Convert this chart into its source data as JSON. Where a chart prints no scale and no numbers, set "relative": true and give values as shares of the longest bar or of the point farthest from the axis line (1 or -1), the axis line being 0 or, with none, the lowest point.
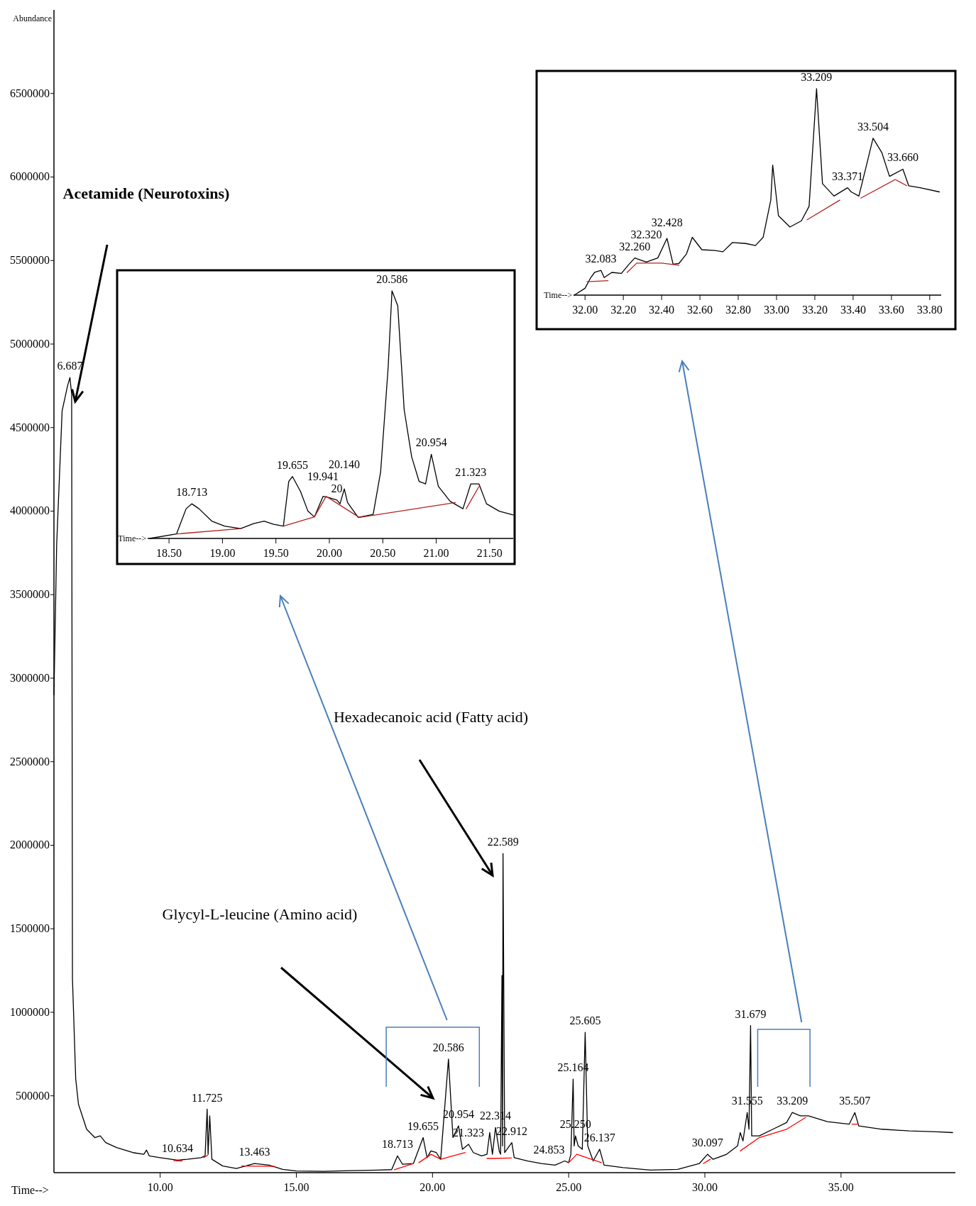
{
  "chart_data": [
    {
      "type": "line",
      "xlabel": "Time-->",
      "ylabel": "Abundance",
      "xlim": [
        6.1,
        39.2
      ],
      "ylim": [
        40000,
        7000000
      ],
      "xticks": [
        {
          "value": 10,
          "label": "10.00"
        },
        {
          "value": 15,
          "label": "15.00"
        },
        {
          "value": 20,
          "label": "20.00"
        },
        {
          "value": 25,
          "label": "25.00"
        },
        {
          "value": 30,
          "label": "30.00"
        },
        {
          "value": 35,
          "label": "35.00"
        }
      ],
      "yticks": [
        500000,
        1000000,
        1500000,
        2000000,
        2500000,
        3000000,
        3500000,
        4000000,
        4500000,
        5000000,
        5500000,
        6000000,
        6500000
      ],
      "series": [
        {
          "color": "#000000",
          "x": [
            6.1,
            6.2,
            6.4,
            6.6,
            6.687,
            6.75,
            6.78,
            6.9,
            7.0,
            7.3,
            7.6,
            7.8,
            8.0,
            8.4,
            9.0,
            9.4,
            9.5,
            9.6,
            10.0,
            10.634,
            11.0,
            11.5,
            11.65,
            11.725,
            11.76,
            11.82,
            11.9,
            12.3,
            12.8,
            13.463,
            14.0,
            14.5,
            15.0,
            16.0,
            17.0,
            18.0,
            18.5,
            18.713,
            18.9,
            19.3,
            19.655,
            19.8,
            19.941,
            20.14,
            20.3,
            20.586,
            20.75,
            20.954,
            21.1,
            21.323,
            21.5,
            21.8,
            22.0,
            22.1,
            22.2,
            22.314,
            22.45,
            22.5,
            22.55,
            22.57,
            22.589,
            22.65,
            22.912,
            23.0,
            23.5,
            24.0,
            24.5,
            24.853,
            25.0,
            25.08,
            25.164,
            25.2,
            25.25,
            25.35,
            25.5,
            25.605,
            25.7,
            25.9,
            26.137,
            26.3,
            27.0,
            28.0,
            29.0,
            29.8,
            30.097,
            30.3,
            30.8,
            31.2,
            31.3,
            31.4,
            31.555,
            31.62,
            31.679,
            31.72,
            32.0,
            32.5,
            33.0,
            33.209,
            33.504,
            33.8,
            34.5,
            35.3,
            35.507,
            35.65,
            36.5,
            37.5,
            38.5,
            39.1
          ],
          "values": [
            2900000,
            3800000,
            4600000,
            4750000,
            4800000,
            4700000,
            1200000,
            600000,
            450000,
            300000,
            250000,
            260000,
            220000,
            190000,
            160000,
            150000,
            175000,
            140000,
            130000,
            115000,
            120000,
            130000,
            140000,
            420000,
            150000,
            380000,
            120000,
            80000,
            65000,
            95000,
            85000,
            60000,
            50000,
            48000,
            52000,
            55000,
            58000,
            140000,
            90000,
            95000,
            250000,
            130000,
            170000,
            160000,
            120000,
            720000,
            250000,
            320000,
            180000,
            210000,
            160000,
            140000,
            150000,
            280000,
            150000,
            310000,
            170000,
            150000,
            1220000,
            200000,
            1950000,
            160000,
            220000,
            130000,
            110000,
            95000,
            85000,
            110000,
            100000,
            150000,
            600000,
            200000,
            260000,
            200000,
            180000,
            880000,
            200000,
            110000,
            180000,
            85000,
            70000,
            55000,
            60000,
            95000,
            150000,
            120000,
            150000,
            200000,
            280000,
            230000,
            400000,
            300000,
            920000,
            260000,
            260000,
            300000,
            340000,
            400000,
            380000,
            380000,
            345000,
            330000,
            400000,
            320000,
            300000,
            290000,
            285000,
            280000
          ]
        },
        {
          "color": "#ff0000",
          "x": [
            10.5,
            10.8,
            10.81,
            11.6,
            11.75,
            11.76,
            13.0,
            14.2,
            14.21,
            18.6,
            19.3,
            19.31,
            19.5,
            19.95,
            20.3,
            21.2,
            21.21,
            22.0,
            22.9,
            22.91,
            25.0,
            25.3,
            26.2,
            26.21,
            29.95,
            30.2,
            30.21,
            31.3,
            32.0,
            33.0,
            33.7,
            33.71,
            35.4,
            35.6
          ],
          "values": [
            112000,
            110000,
            null,
            130000,
            145000,
            null,
            80000,
            78000,
            null,
            58000,
            95000,
            null,
            100000,
            150000,
            120000,
            160000,
            null,
            125000,
            128000,
            null,
            100000,
            150000,
            100000,
            null,
            95000,
            120000,
            null,
            170000,
            250000,
            300000,
            370000,
            null,
            330000,
            330000
          ]
        }
      ],
      "annotations": [
        "Acetamide (Neurotoxins)",
        "Hexadecanoic acid (Fatty acid)",
        "Glycyl-L-leucine (Amino acid)",
        {
          "text": "6.687",
          "x": 6.687,
          "y": 4800000
        },
        {
          "text": "10.634",
          "x": 10.634,
          "y": 115000
        },
        {
          "text": "11.725",
          "x": 11.725,
          "y": 420000
        },
        {
          "text": "13.463",
          "x": 13.463,
          "y": 95000
        },
        {
          "text": "18.713",
          "x": 18.713,
          "y": 140000
        },
        {
          "text": "19.655",
          "x": 19.655,
          "y": 250000
        },
        {
          "text": "20.586",
          "x": 20.586,
          "y": 720000
        },
        {
          "text": "21.323",
          "x": 21.323,
          "y": 210000
        },
        {
          "text": "20.954",
          "x": 20.954,
          "y": 320000
        },
        {
          "text": "22.912",
          "x": 22.912,
          "y": 220000
        },
        {
          "text": "22.314",
          "x": 22.314,
          "y": 310000
        },
        {
          "text": "22.589",
          "x": 22.589,
          "y": 1950000
        },
        {
          "text": "24.853",
          "x": 24.853,
          "y": 110000
        },
        {
          "text": "26.137",
          "x": 26.137,
          "y": 180000
        },
        {
          "text": "25.250",
          "x": 25.25,
          "y": 260000
        },
        {
          "text": "25.164",
          "x": 25.164,
          "y": 600000
        },
        {
          "text": "25.605",
          "x": 25.605,
          "y": 880000
        },
        {
          "text": "30.097",
          "x": 30.097,
          "y": 150000
        },
        {
          "text": "31.555",
          "x": 31.555,
          "y": 400000
        },
        {
          "text": "31.679",
          "x": 31.679,
          "y": 920000
        },
        {
          "text": "33.209",
          "x": 33.209,
          "y": 400000
        },
        {
          "text": "35.507",
          "x": 35.507,
          "y": 400000
        }
      ]
    },
    {
      "type": "line",
      "relative": true,
      "xlabel": "Time-->",
      "xlim": [
        18.3,
        21.72
      ],
      "xticks": [
        {
          "value": 18.5,
          "label": "18.50"
        },
        {
          "value": 19,
          "label": "19.00"
        },
        {
          "value": 19.5,
          "label": "19.50"
        },
        {
          "value": 20,
          "label": "20.00"
        },
        {
          "value": 20.5,
          "label": "20.50"
        },
        {
          "value": 21,
          "label": "21.00"
        },
        {
          "value": 21.5,
          "label": "21.50"
        }
      ],
      "series": [
        {
          "color": "#000000",
          "x": [
            18.32,
            18.57,
            18.66,
            18.713,
            18.78,
            18.9,
            19.02,
            19.17,
            19.29,
            19.39,
            19.48,
            19.57,
            19.62,
            19.655,
            19.73,
            19.8,
            19.86,
            19.941,
            19.99,
            20.07,
            20.1,
            20.14,
            20.17,
            20.27,
            20.41,
            20.48,
            20.55,
            20.586,
            20.64,
            20.7,
            20.77,
            20.84,
            20.9,
            20.954,
            21.02,
            21.13,
            21.25,
            21.323,
            21.4,
            21.47,
            21.59,
            21.72
          ],
          "values": [
            0,
            0.018,
            0.12,
            0.14,
            0.12,
            0.07,
            0.05,
            0.04,
            0.06,
            0.07,
            0.057,
            0.05,
            0.23,
            0.25,
            0.19,
            0.11,
            0.087,
            0.17,
            0.166,
            0.155,
            0.14,
            0.2,
            0.145,
            0.085,
            0.097,
            0.27,
            0.69,
            1,
            0.94,
            0.52,
            0.33,
            0.23,
            0.22,
            0.34,
            0.21,
            0.15,
            0.12,
            0.22,
            0.22,
            0.14,
            0.11,
            0.095
          ]
        },
        {
          "color": "#b22222",
          "x": [
            18.57,
            19.17,
            19.18,
            19.57,
            19.86,
            19.97,
            20.28,
            21.18,
            21.19,
            21.28,
            21.4
          ],
          "values": [
            0.018,
            0.04,
            null,
            0.05,
            0.087,
            0.17,
            0.085,
            0.145,
            null,
            0.12,
            0.21
          ]
        }
      ],
      "annotations": [
        {
          "text": "18.713",
          "x": 18.713,
          "y": 0.14
        },
        {
          "text": "19.655",
          "x": 19.655,
          "y": 0.25
        },
        {
          "text": "20",
          "x": 20.07,
          "y": 0.155
        },
        {
          "text": "19.941",
          "x": 19.941,
          "y": 0.17
        },
        {
          "text": "20.140",
          "x": 20.14,
          "y": 0.2
        },
        {
          "text": "20.586",
          "x": 20.586,
          "y": 1
        },
        {
          "text": "20.954",
          "x": 20.954,
          "y": 0.34
        },
        {
          "text": "21.323",
          "x": 21.323,
          "y": 0.22
        }
      ]
    },
    {
      "type": "line",
      "relative": true,
      "xlabel": "Time-->",
      "xlim": [
        31.94,
        33.86
      ],
      "xticks": [
        {
          "value": 32,
          "label": "32.00"
        },
        {
          "value": 32.2,
          "label": "32.20"
        },
        {
          "value": 32.4,
          "label": "32.40"
        },
        {
          "value": 32.6,
          "label": "32.60"
        },
        {
          "value": 32.8,
          "label": "32.80"
        },
        {
          "value": 33,
          "label": "33.00"
        },
        {
          "value": 33.2,
          "label": "33.20"
        },
        {
          "value": 33.4,
          "label": "33.40"
        },
        {
          "value": 33.6,
          "label": "33.60"
        },
        {
          "value": 33.8,
          "label": "33.80"
        }
      ],
      "series": [
        {
          "color": "#000000",
          "x": [
            31.944,
            32.0,
            32.03,
            32.05,
            32.083,
            32.1,
            32.14,
            32.19,
            32.23,
            32.26,
            32.29,
            32.32,
            32.38,
            32.428,
            32.46,
            32.49,
            32.53,
            32.56,
            32.61,
            32.68,
            32.72,
            32.77,
            32.84,
            32.89,
            32.93,
            32.97,
            32.98,
            33.01,
            33.07,
            33.13,
            33.17,
            33.209,
            33.24,
            33.3,
            33.371,
            33.39,
            33.43,
            33.47,
            33.504,
            33.55,
            33.59,
            33.66,
            33.69,
            33.75,
            33.85
          ],
          "values": [
            0,
            0.033,
            0.085,
            0.11,
            0.12,
            0.085,
            0.11,
            0.105,
            0.15,
            0.18,
            0.17,
            0.16,
            0.18,
            0.275,
            0.15,
            0.153,
            0.2,
            0.28,
            0.22,
            0.216,
            0.21,
            0.255,
            0.25,
            0.24,
            0.28,
            0.46,
            0.63,
            0.385,
            0.33,
            0.36,
            0.43,
            1,
            0.54,
            0.48,
            0.52,
            0.5,
            0.48,
            0.63,
            0.76,
            0.69,
            0.575,
            0.61,
            0.53,
            0.52,
            0.5
          ]
        },
        {
          "color": "#b22222",
          "x": [
            32.01,
            32.12,
            32.13,
            32.22,
            32.27,
            32.4,
            32.49,
            32.5,
            33.16,
            33.33,
            33.34,
            33.44,
            33.62,
            33.68
          ],
          "values": [
            0.065,
            0.07,
            null,
            0.11,
            0.155,
            0.155,
            0.145,
            null,
            0.365,
            0.46,
            null,
            0.47,
            0.56,
            0.53
          ]
        }
      ],
      "annotations": [
        {
          "text": "32.083",
          "x": 32.083,
          "y": 0.12
        },
        {
          "text": "32.260",
          "x": 32.26,
          "y": 0.18
        },
        {
          "text": "32.320",
          "x": 32.32,
          "y": 0.16
        },
        {
          "text": "32.428",
          "x": 32.428,
          "y": 0.275
        },
        {
          "text": "33.209",
          "x": 33.209,
          "y": 1
        },
        {
          "text": "33.371",
          "x": 33.371,
          "y": 0.52
        },
        {
          "text": "33.504",
          "x": 33.504,
          "y": 0.76
        },
        {
          "text": "33.660",
          "x": 33.66,
          "y": 0.61
        }
      ]
    }
  ]
}
